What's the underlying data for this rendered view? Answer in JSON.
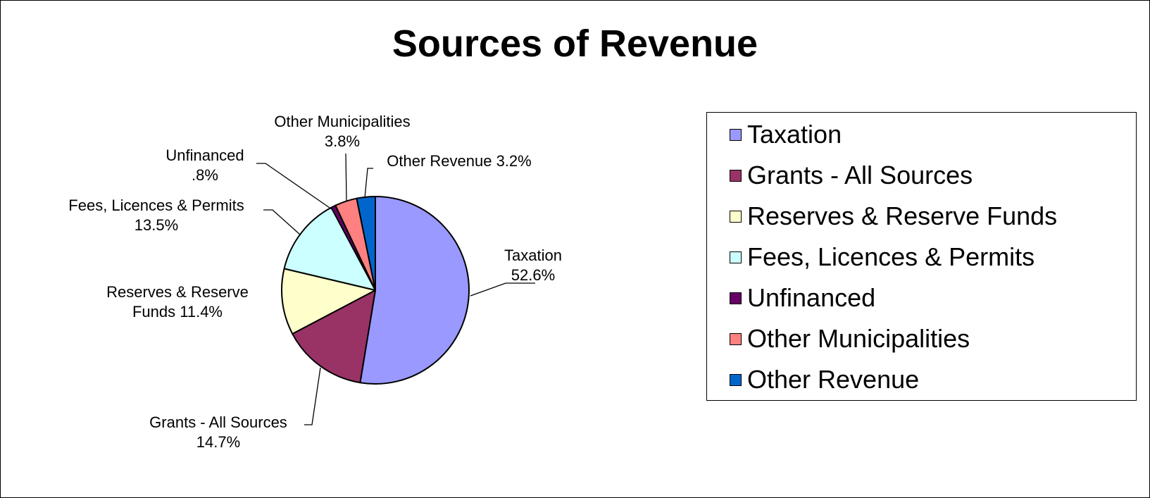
{
  "chart_data": {
    "type": "pie",
    "title": "Sources of Revenue",
    "slices": [
      {
        "name": "Taxation",
        "value": 52.6,
        "color": "#9999ff",
        "label_lines": [
          "Taxation",
          "52.6%"
        ]
      },
      {
        "name": "Grants - All Sources",
        "value": 14.7,
        "color": "#993366",
        "label_lines": [
          "Grants - All Sources",
          "14.7%"
        ]
      },
      {
        "name": "Reserves & Reserve Funds",
        "value": 11.4,
        "color": "#ffffcc",
        "label_lines": [
          "Reserves & Reserve",
          "Funds  11.4%"
        ]
      },
      {
        "name": "Fees, Licences & Permits",
        "value": 13.5,
        "color": "#ccffff",
        "label_lines": [
          "Fees, Licences & Permits",
          "13.5%"
        ]
      },
      {
        "name": "Unfinanced",
        "value": 0.8,
        "color": "#660066",
        "label_lines": [
          "Unfinanced",
          ".8%"
        ]
      },
      {
        "name": "Other Municipalities",
        "value": 3.8,
        "color": "#ff8080",
        "label_lines": [
          "Other Municipalities",
          "3.8%"
        ]
      },
      {
        "name": "Other Revenue",
        "value": 3.2,
        "color": "#0066cc",
        "label_lines": [
          "Other Revenue  3.2%"
        ]
      }
    ],
    "legend": {
      "position": "right",
      "entries": [
        "Taxation",
        "Grants - All Sources",
        "Reserves & Reserve Funds",
        "Fees, Licences & Permits",
        "Unfinanced",
        "Other Municipalities",
        "Other Revenue"
      ]
    }
  }
}
